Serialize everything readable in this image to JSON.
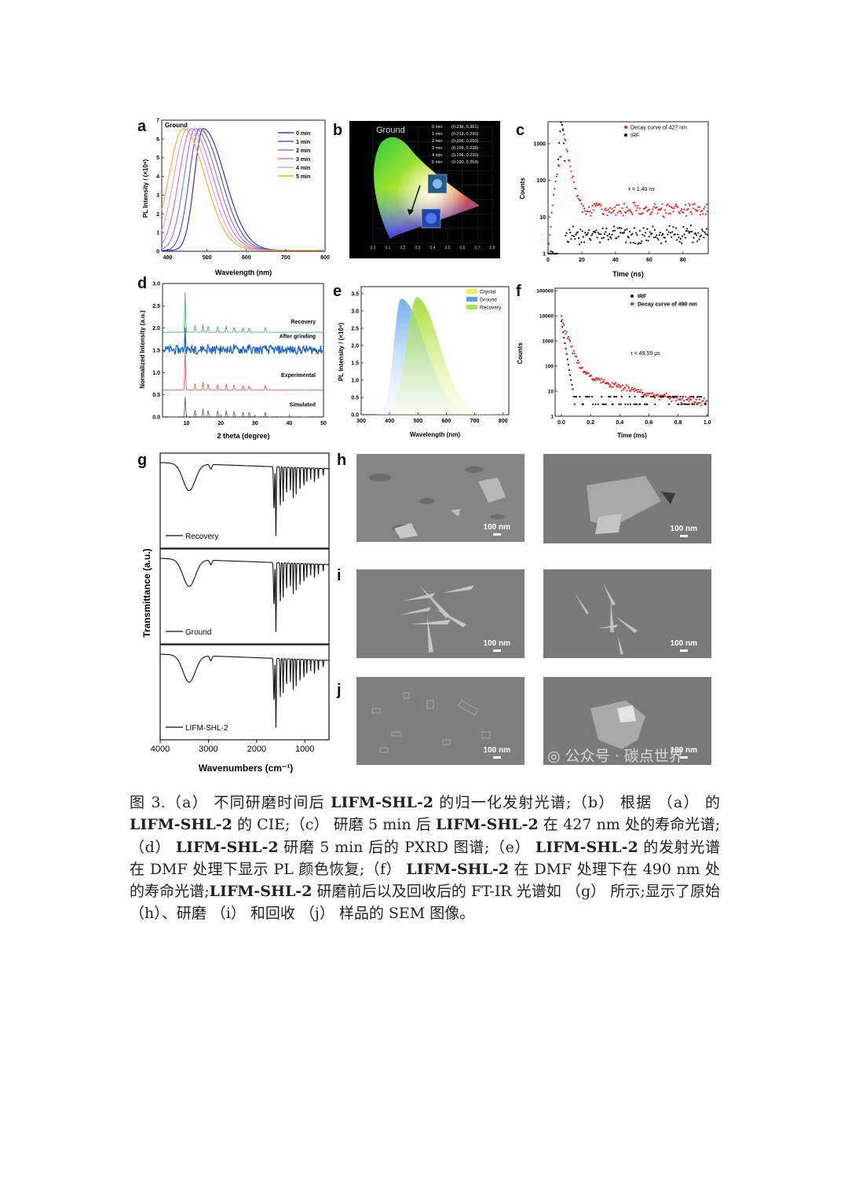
{
  "panels": {
    "a": {
      "label": "a",
      "tag": "Ground",
      "xlabel": "Wavelength (nm)",
      "ylabel": "PL Intensity / (×10⁶)",
      "xticks": [
        "400",
        "500",
        "600",
        "700",
        "800"
      ],
      "yticks": [
        "0",
        "1",
        "2",
        "3",
        "4",
        "5",
        "6",
        "7"
      ],
      "legend": [
        "0 min",
        "1 min",
        "2 min",
        "3 min",
        "4 min",
        "5 min"
      ],
      "colors": [
        "#3b33b6",
        "#5f58d6",
        "#8a7ee6",
        "#d673d2",
        "#e8a4d8",
        "#f0b33a"
      ]
    },
    "b": {
      "label": "b",
      "tag": "Ground",
      "legend": [
        "0 min",
        "1 min",
        "2 min",
        "3 min",
        "4 min",
        "5 min"
      ],
      "coords": [
        "(0.236, 0.361)",
        "(0.213, 0.290)",
        "(0.206, 0.260)",
        "(0.199, 0.238)",
        "(0.196, 0.220)",
        "(0.190, 0.204)"
      ],
      "xticks": [
        "0.0",
        "0.1",
        "0.2",
        "0.3",
        "0.4",
        "0.5",
        "0.6",
        "0.7",
        "0.8"
      ]
    },
    "c": {
      "label": "c",
      "legend": [
        "Decay curve of 427 nm",
        "IRF"
      ],
      "annotation": "τ = 1.40 ns",
      "xlabel": "Time (ns)",
      "ylabel": "Counts",
      "xticks": [
        "0",
        "20",
        "40",
        "60",
        "80"
      ],
      "yticks": [
        "1",
        "10",
        "100",
        "1000"
      ]
    },
    "d": {
      "label": "d",
      "xlabel": "2 theta (degree)",
      "ylabel": "Normalized Intensity (a.u.)",
      "xticks": [
        "10",
        "20",
        "30",
        "40",
        "50"
      ],
      "yticks": [
        "0.0",
        "0.5",
        "1.0",
        "1.5",
        "2.0",
        "2.5",
        "3.0"
      ],
      "series": [
        "Recovery",
        "After grinding",
        "Experimental",
        "Simulated"
      ]
    },
    "e": {
      "label": "e",
      "xlabel": "Wavelength (nm)",
      "ylabel": "PL Intensity / (×10⁶)",
      "xticks": [
        "300",
        "400",
        "500",
        "600",
        "700",
        "800"
      ],
      "yticks": [
        "0.0",
        "0.5",
        "1.0",
        "1.5",
        "2.0",
        "2.5",
        "3.0",
        "3.5"
      ],
      "legend": [
        "Crystal",
        "Ground",
        "Recovery"
      ]
    },
    "f": {
      "label": "f",
      "legend": [
        "IRF",
        "Decay curve of 490 nm"
      ],
      "annotation": "τ = 49.59 μs",
      "xlabel": "Time (ms)",
      "ylabel": "Counts",
      "xticks": [
        "0.0",
        "0.2",
        "0.4",
        "0.6",
        "0.8",
        "1.0"
      ],
      "yticks": [
        "1",
        "10",
        "100",
        "1000",
        "10000",
        "100000"
      ]
    },
    "g": {
      "label": "g",
      "ylabel": "Transmittance (a.u.)",
      "xlabel": "Wavenumbers (cm⁻¹)",
      "xticks": [
        "4000",
        "3000",
        "2000",
        "1000"
      ],
      "traces": [
        "Recovery",
        "Ground",
        "LIFM-SHL-2"
      ]
    },
    "h": {
      "label": "h",
      "scale": "100 nm"
    },
    "i": {
      "label": "i",
      "scale": "100 nm"
    },
    "j": {
      "label": "j",
      "scale": "100 nm"
    }
  },
  "watermark": "公众号 · 碳点世界",
  "caption": {
    "fig": "图 3.",
    "p1": "（a） 不同研磨时间后 ",
    "c1": "LIFM-SHL-2",
    "p2": " 的归一化发射光谱;（b） 根据 （a） 的 ",
    "c2": "LIFM-SHL-2",
    "p3": " 的 CIE;（c） 研磨 5 min 后 ",
    "c3": "LIFM-SHL-2",
    "p4": " 在 427 nm 处的寿命光谱;（d） ",
    "c4": "LIFM-SHL-2",
    "p5": " 研磨 5 min 后的 PXRD 图谱;（e） ",
    "c5": "LIFM-SHL-2",
    "p6": " 的发射光谱在 DMF 处理下显示 PL 颜色恢复;（f） ",
    "c6": "LIFM-SHL-2",
    "p7": " 在 DMF 处理下在 490 nm 处的寿命光谱;",
    "c7": "LIFM-SHL-2",
    "p8": " 研磨前后以及回收后的 FT-IR 光谱如 （g） 所示;显示了原始 （h）、研磨 （i） 和回收 （j） 样品的 SEM 图像。"
  }
}
